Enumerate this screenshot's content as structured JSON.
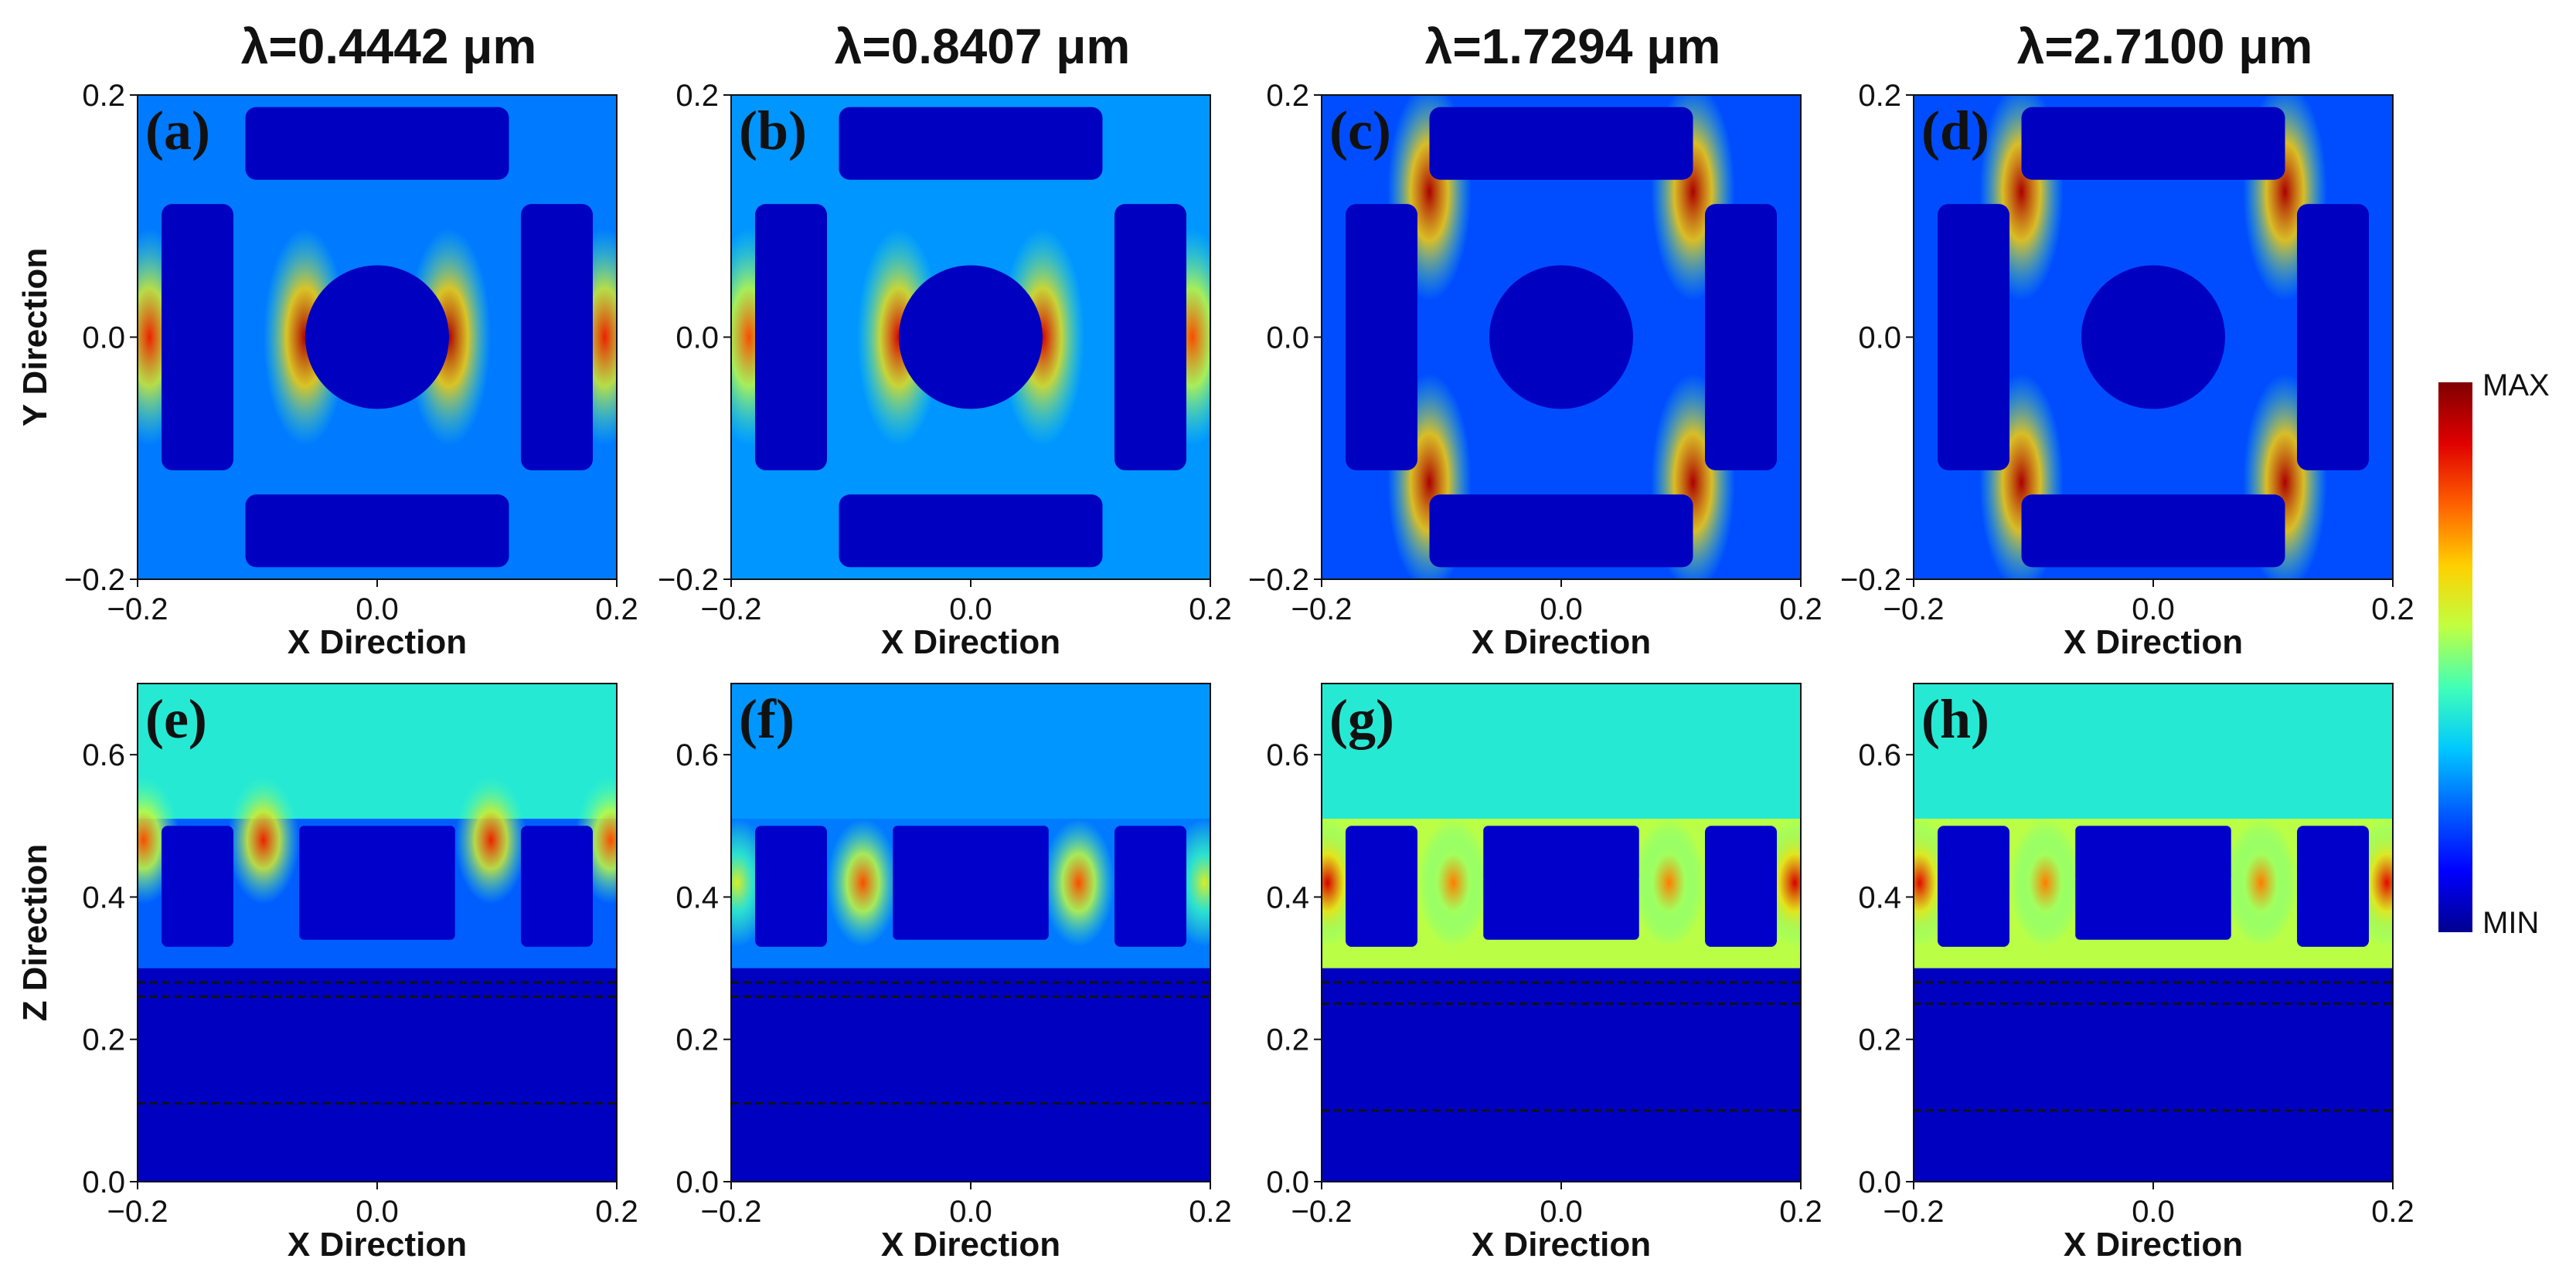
{
  "colormap_stops": [
    "#00008f",
    "#0000ff",
    "#0060ff",
    "#00c8ff",
    "#40ffb8",
    "#c0ff40",
    "#ffd000",
    "#ff6000",
    "#e00000",
    "#800000"
  ],
  "colorbar": {
    "max_label": "MAX",
    "min_label": "MIN"
  },
  "chart_data": [
    {
      "type": "heatmap",
      "panel": "(a)",
      "title": "λ=0.4442 μm",
      "xlabel": "X Direction",
      "ylabel": "Y Direction",
      "xlim": [
        -0.2,
        0.2
      ],
      "ylim": [
        -0.2,
        0.2
      ],
      "x_ticks": [
        "−0.2",
        "0.0",
        "0.2"
      ],
      "y_ticks": [
        "−0.2",
        "0.0",
        "0.2"
      ],
      "background_level": 0.25,
      "hotspots": [
        {
          "x": -0.06,
          "y": 0.0,
          "level": 0.95
        },
        {
          "x": 0.06,
          "y": 0.0,
          "level": 0.95
        },
        {
          "x": -0.19,
          "y": 0.0,
          "level": 0.85
        },
        {
          "x": 0.19,
          "y": 0.0,
          "level": 0.85
        }
      ]
    },
    {
      "type": "heatmap",
      "panel": "(b)",
      "title": "λ=0.8407 μm",
      "xlabel": "X Direction",
      "ylabel": "",
      "xlim": [
        -0.2,
        0.2
      ],
      "ylim": [
        -0.2,
        0.2
      ],
      "x_ticks": [
        "−0.2",
        "0.0",
        "0.2"
      ],
      "y_ticks": [
        "−0.2",
        "0.0",
        "0.2"
      ],
      "background_level": 0.28,
      "hotspots": [
        {
          "x": -0.06,
          "y": 0.0,
          "level": 0.9
        },
        {
          "x": 0.06,
          "y": 0.0,
          "level": 0.9
        },
        {
          "x": -0.185,
          "y": 0.0,
          "level": 0.8
        },
        {
          "x": 0.185,
          "y": 0.0,
          "level": 0.8
        }
      ]
    },
    {
      "type": "heatmap",
      "panel": "(c)",
      "title": "λ=1.7294 μm",
      "xlabel": "X Direction",
      "ylabel": "",
      "xlim": [
        -0.2,
        0.2
      ],
      "ylim": [
        -0.2,
        0.2
      ],
      "x_ticks": [
        "−0.2",
        "0.0",
        "0.2"
      ],
      "y_ticks": [
        "−0.2",
        "0.0",
        "0.2"
      ],
      "background_level": 0.2,
      "hotspots": [
        {
          "x": -0.11,
          "y": 0.12,
          "level": 0.95
        },
        {
          "x": 0.11,
          "y": 0.12,
          "level": 0.95
        },
        {
          "x": -0.11,
          "y": -0.12,
          "level": 0.95
        },
        {
          "x": 0.11,
          "y": -0.12,
          "level": 0.95
        }
      ]
    },
    {
      "type": "heatmap",
      "panel": "(d)",
      "title": "λ=2.7100 μm",
      "xlabel": "X Direction",
      "ylabel": "",
      "xlim": [
        -0.2,
        0.2
      ],
      "ylim": [
        -0.2,
        0.2
      ],
      "x_ticks": [
        "−0.2",
        "0.0",
        "0.2"
      ],
      "y_ticks": [
        "−0.2",
        "0.0",
        "0.2"
      ],
      "background_level": 0.2,
      "hotspots": [
        {
          "x": -0.11,
          "y": 0.12,
          "level": 0.95
        },
        {
          "x": 0.11,
          "y": 0.12,
          "level": 0.95
        },
        {
          "x": -0.11,
          "y": -0.12,
          "level": 0.95
        },
        {
          "x": 0.11,
          "y": -0.12,
          "level": 0.95
        }
      ]
    },
    {
      "type": "heatmap",
      "panel": "(e)",
      "title": "",
      "xlabel": "X Direction",
      "ylabel": "Z Direction",
      "xlim": [
        -0.2,
        0.2
      ],
      "ylim": [
        0.0,
        0.7
      ],
      "x_ticks": [
        "−0.2",
        "0.0",
        "0.2"
      ],
      "y_ticks": [
        "0.0",
        "0.2",
        "0.4",
        "0.6"
      ],
      "top_level": 0.4,
      "bottom_level": 0.05,
      "band_level": 0.22,
      "dashed_lines_z": [
        0.28,
        0.26,
        0.11
      ],
      "hotspots": [
        {
          "x": -0.095,
          "y": 0.48,
          "level": 0.85
        },
        {
          "x": 0.095,
          "y": 0.48,
          "level": 0.85
        },
        {
          "x": -0.195,
          "y": 0.48,
          "level": 0.8
        },
        {
          "x": 0.195,
          "y": 0.48,
          "level": 0.8
        }
      ]
    },
    {
      "type": "heatmap",
      "panel": "(f)",
      "title": "",
      "xlabel": "X Direction",
      "ylabel": "",
      "xlim": [
        -0.2,
        0.2
      ],
      "ylim": [
        0.0,
        0.7
      ],
      "x_ticks": [
        "−0.2",
        "0.0",
        "0.2"
      ],
      "y_ticks": [
        "0.0",
        "0.2",
        "0.4",
        "0.6"
      ],
      "top_level": 0.28,
      "bottom_level": 0.05,
      "band_level": 0.25,
      "dashed_lines_z": [
        0.28,
        0.26,
        0.11
      ],
      "hotspots": [
        {
          "x": -0.09,
          "y": 0.42,
          "level": 0.8
        },
        {
          "x": 0.09,
          "y": 0.42,
          "level": 0.8
        },
        {
          "x": -0.195,
          "y": 0.42,
          "level": 0.6
        },
        {
          "x": 0.195,
          "y": 0.42,
          "level": 0.6
        }
      ]
    },
    {
      "type": "heatmap",
      "panel": "(g)",
      "title": "",
      "xlabel": "X Direction",
      "ylabel": "",
      "xlim": [
        -0.2,
        0.2
      ],
      "ylim": [
        0.0,
        0.7
      ],
      "x_ticks": [
        "−0.2",
        "0.0",
        "0.2"
      ],
      "y_ticks": [
        "0.0",
        "0.2",
        "0.4",
        "0.6"
      ],
      "top_level": 0.4,
      "bottom_level": 0.05,
      "band_level": 0.55,
      "dashed_lines_z": [
        0.28,
        0.25,
        0.1
      ],
      "hotspots": [
        {
          "x": -0.09,
          "y": 0.42,
          "level": 0.75
        },
        {
          "x": 0.09,
          "y": 0.42,
          "level": 0.75
        },
        {
          "x": -0.195,
          "y": 0.42,
          "level": 0.9
        },
        {
          "x": 0.195,
          "y": 0.42,
          "level": 0.9
        }
      ]
    },
    {
      "type": "heatmap",
      "panel": "(h)",
      "title": "",
      "xlabel": "X Direction",
      "ylabel": "",
      "xlim": [
        -0.2,
        0.2
      ],
      "ylim": [
        0.0,
        0.7
      ],
      "x_ticks": [
        "−0.2",
        "0.0",
        "0.2"
      ],
      "y_ticks": [
        "0.0",
        "0.2",
        "0.4",
        "0.6"
      ],
      "top_level": 0.4,
      "bottom_level": 0.05,
      "band_level": 0.55,
      "dashed_lines_z": [
        0.28,
        0.25,
        0.1
      ],
      "hotspots": [
        {
          "x": -0.09,
          "y": 0.42,
          "level": 0.75
        },
        {
          "x": 0.09,
          "y": 0.42,
          "level": 0.75
        },
        {
          "x": -0.195,
          "y": 0.42,
          "level": 0.88
        },
        {
          "x": 0.195,
          "y": 0.42,
          "level": 0.88
        }
      ]
    }
  ]
}
